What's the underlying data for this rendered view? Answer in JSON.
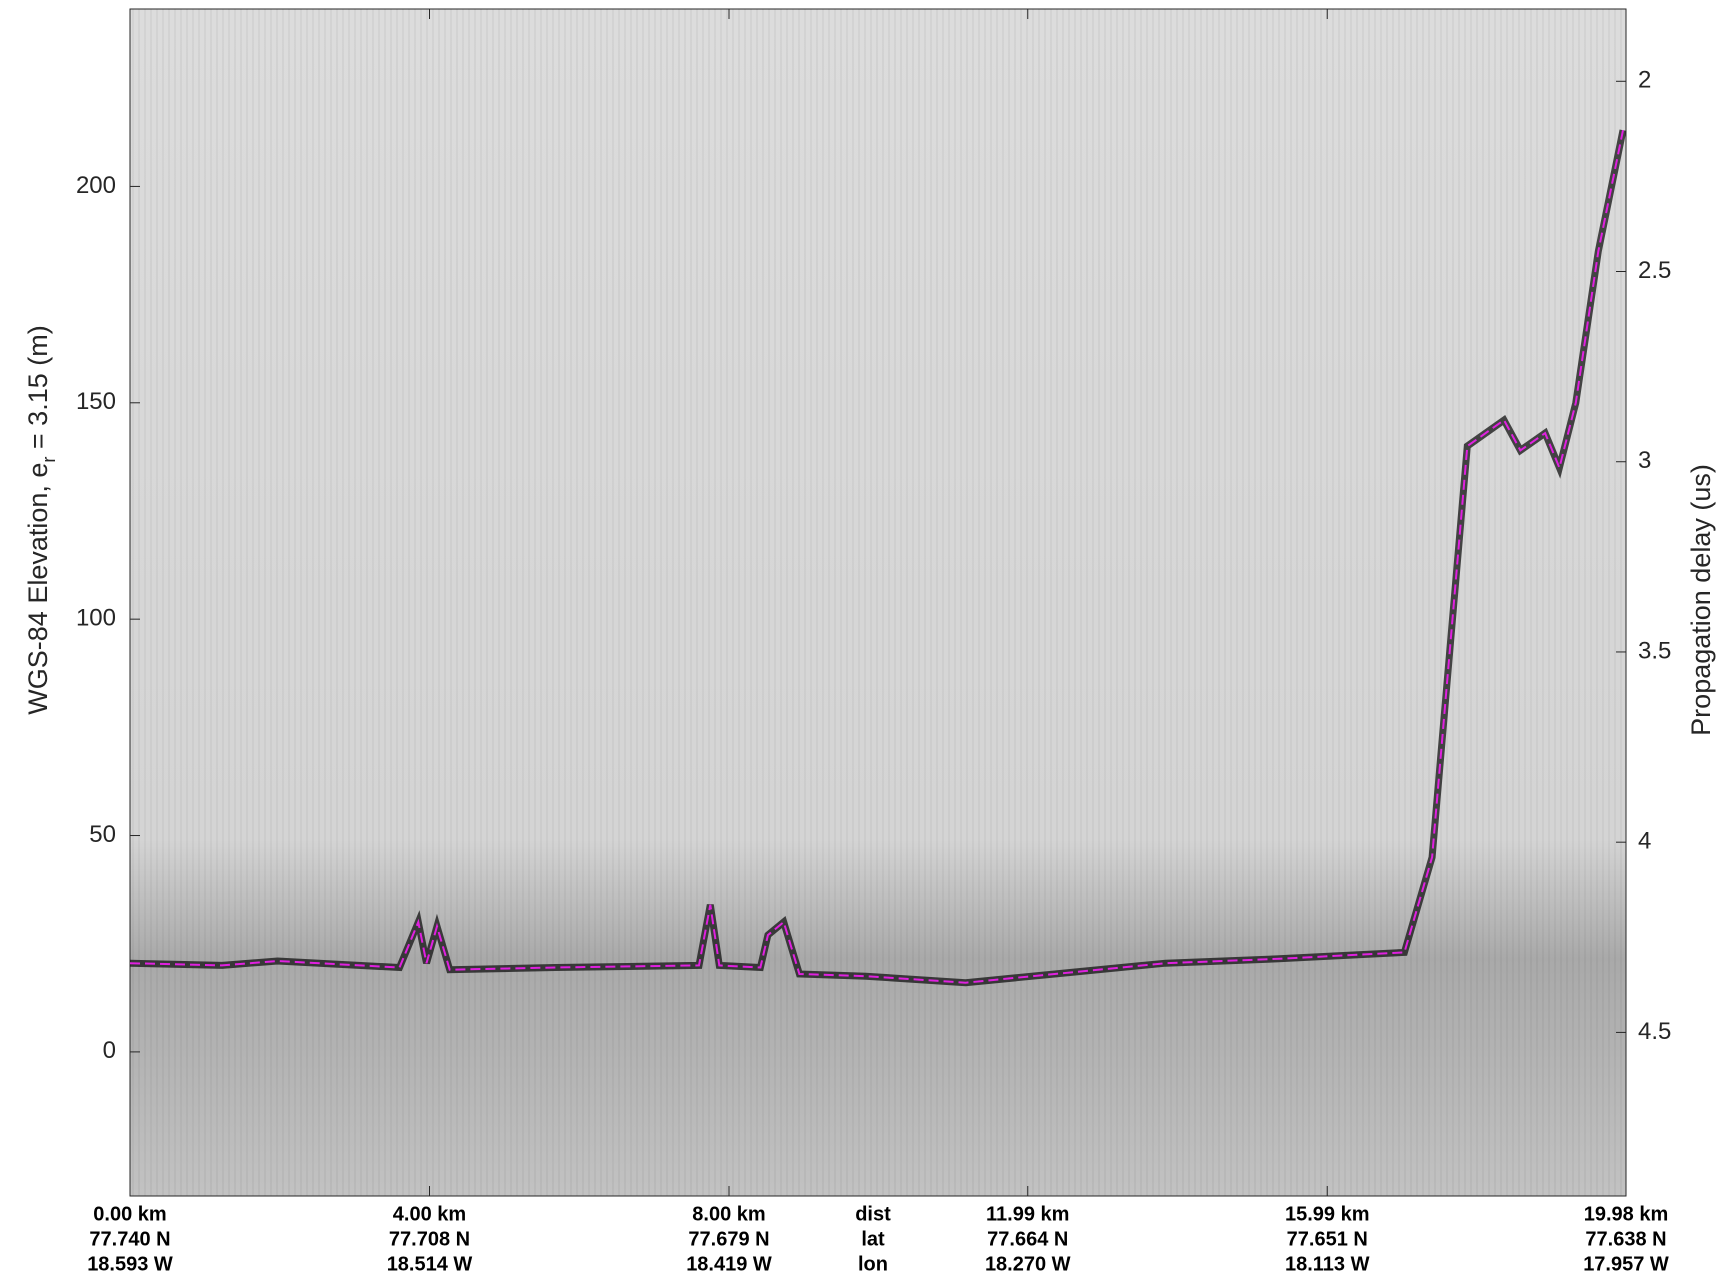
{
  "chart_data": {
    "type": "line",
    "y_label_parts": [
      "WGS-84 Elevation, e",
      "r",
      " = 3.15 (m)"
    ],
    "y2_label": "Propagation delay (us)",
    "x_row_labels": [
      "dist",
      "lat",
      "lon"
    ],
    "xlim": [
      0,
      19.98
    ],
    "xticks": [
      {
        "value": 0,
        "label": "0.00 km"
      },
      {
        "value": 4,
        "label": "4.00 km"
      },
      {
        "value": 8,
        "label": "8.00 km"
      },
      {
        "value": 11.99,
        "label": "11.99 km"
      },
      {
        "value": 15.99,
        "label": "15.99 km"
      },
      {
        "value": 19.98,
        "label": "19.98 km"
      }
    ],
    "lat_labels": [
      "77.740 N",
      "77.708 N",
      "77.679 N",
      "77.664 N",
      "77.651 N",
      "77.638 N"
    ],
    "lon_labels": [
      "18.593 W",
      "18.514 W",
      "18.419 W",
      "18.270 W",
      "18.113 W",
      "17.957 W"
    ],
    "ylim": [
      -33.3,
      241
    ],
    "yticks": [
      0,
      50,
      100,
      150,
      200
    ],
    "y2lim": [
      4.93,
      1.81
    ],
    "y2ticks": [
      2,
      2.5,
      3,
      3.5,
      4,
      4.5
    ],
    "series": [
      {
        "color": "#e020e0",
        "x": [
          0,
          1.23,
          1.97,
          3.6,
          3.85,
          3.96,
          4.1,
          4.27,
          5.68,
          7.6,
          7.75,
          7.87,
          8.42,
          8.52,
          8.73,
          8.94,
          9.83,
          11.16,
          12.35,
          13.83,
          15.31,
          17.02,
          17.39,
          17.86,
          18.35,
          18.57,
          18.9,
          19.09,
          19.31,
          19.61,
          19.94
        ],
        "values": [
          20.5,
          20,
          21,
          19.5,
          30,
          20.5,
          29,
          19,
          19.5,
          20,
          34,
          20,
          19.5,
          27,
          30,
          18,
          17.5,
          16,
          18,
          20.5,
          21.5,
          23,
          45,
          140,
          146,
          139,
          143,
          135,
          150,
          185,
          213
        ]
      }
    ]
  }
}
